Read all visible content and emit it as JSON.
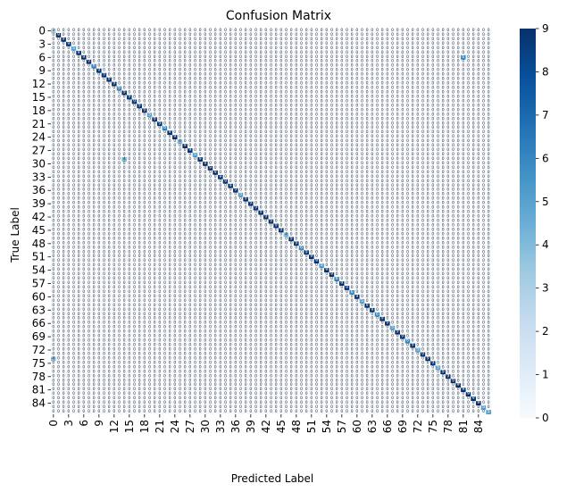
{
  "chart_data": {
    "type": "heatmap",
    "title": "Confusion Matrix",
    "xlabel": "Predicted Label",
    "ylabel": "True Label",
    "n_classes": 87,
    "x_tick_labels": [
      "0",
      "3",
      "6",
      "9",
      "12",
      "15",
      "18",
      "21",
      "24",
      "27",
      "30",
      "33",
      "36",
      "39",
      "42",
      "45",
      "48",
      "51",
      "54",
      "57",
      "60",
      "63",
      "66",
      "69",
      "72",
      "75",
      "78",
      "81",
      "84"
    ],
    "y_tick_labels": [
      "0",
      "3",
      "6",
      "9",
      "12",
      "15",
      "18",
      "21",
      "24",
      "27",
      "30",
      "33",
      "36",
      "39",
      "42",
      "45",
      "48",
      "51",
      "54",
      "57",
      "60",
      "63",
      "66",
      "69",
      "72",
      "75",
      "78",
      "81",
      "84"
    ],
    "colorbar": {
      "min": 0,
      "max": 9,
      "ticks": [
        0,
        1,
        2,
        3,
        4,
        5,
        6,
        7,
        8,
        9
      ],
      "colormap": "Blues",
      "colors": [
        "#f7fbff",
        "#deebf7",
        "#c6dbef",
        "#9ecae1",
        "#6baed6",
        "#4292c6",
        "#2171b5",
        "#08519c",
        "#08306b"
      ]
    },
    "annotation_default": "0",
    "diagonal_default": 9,
    "diagonal_exceptions": [
      {
        "row": 0,
        "value": 3
      },
      {
        "row": 4,
        "value": 5
      },
      {
        "row": 8,
        "value": 6
      },
      {
        "row": 13,
        "value": 6
      },
      {
        "row": 19,
        "value": 5
      },
      {
        "row": 22,
        "value": 6
      },
      {
        "row": 25,
        "value": 4
      },
      {
        "row": 28,
        "value": 5
      },
      {
        "row": 37,
        "value": 5
      },
      {
        "row": 46,
        "value": 4
      },
      {
        "row": 49,
        "value": 6
      },
      {
        "row": 53,
        "value": 5
      },
      {
        "row": 56,
        "value": 6
      },
      {
        "row": 59,
        "value": 6
      },
      {
        "row": 61,
        "value": 5
      },
      {
        "row": 64,
        "value": 6
      },
      {
        "row": 67,
        "value": 5
      },
      {
        "row": 70,
        "value": 6
      },
      {
        "row": 72,
        "value": 5
      },
      {
        "row": 76,
        "value": 5
      },
      {
        "row": 85,
        "value": 5
      },
      {
        "row": 86,
        "value": 5
      }
    ],
    "off_diagonal": [
      {
        "row": 6,
        "col": 81,
        "value": 6
      },
      {
        "row": 29,
        "col": 14,
        "value": 4
      },
      {
        "row": 74,
        "col": 0,
        "value": 4
      }
    ],
    "grid": false,
    "legend_position": "right"
  }
}
